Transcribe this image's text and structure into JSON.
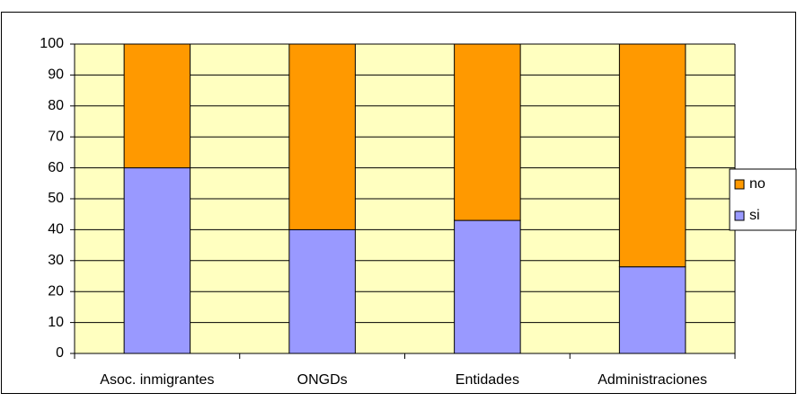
{
  "chart_data": {
    "type": "stacked_bar",
    "categories": [
      "Asoc. inmigrantes",
      "ONGDs",
      "Entidades",
      "Administraciones"
    ],
    "series": [
      {
        "name": "si",
        "color": "#9999ff",
        "values": [
          60,
          40,
          43,
          28
        ]
      },
      {
        "name": "no",
        "color": "#ff9900",
        "values": [
          40,
          60,
          57,
          72
        ]
      }
    ],
    "ylim": [
      0,
      100
    ],
    "yticks": [
      0,
      10,
      20,
      30,
      40,
      50,
      60,
      70,
      80,
      90,
      100
    ],
    "grid": true,
    "legend": "right",
    "plot_background": "#ffffc0"
  }
}
